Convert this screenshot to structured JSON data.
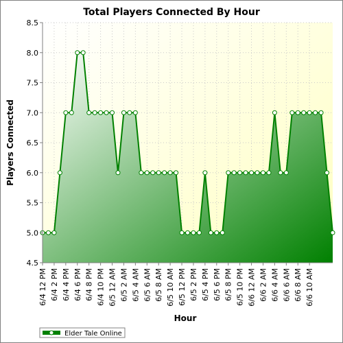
{
  "chart_data": {
    "type": "area",
    "title": "Total Players Connected By Hour",
    "xlabel": "Hour",
    "ylabel": "Players Connected",
    "ylim": [
      4.5,
      8.5
    ],
    "yticks": [
      4.5,
      5.0,
      5.5,
      6.0,
      6.5,
      7.0,
      7.5,
      8.0,
      8.5
    ],
    "grid": true,
    "legend_position": "bottom-left",
    "x_tick_labels": [
      "6/4 12 PM",
      "6/4 2 PM",
      "6/4 4 PM",
      "6/4 6 PM",
      "6/4 8 PM",
      "6/4 10 PM",
      "6/5 12 AM",
      "6/5 2 AM",
      "6/5 4 AM",
      "6/5 6 AM",
      "6/5 8 AM",
      "6/5 10 AM",
      "6/5 12 PM",
      "6/5 2 PM",
      "6/5 4 PM",
      "6/5 6 PM",
      "6/5 8 PM",
      "6/5 10 PM",
      "6/6 12 AM",
      "6/6 2 AM",
      "6/6 4 AM",
      "6/6 6 AM",
      "6/6 8 AM",
      "6/6 10 AM"
    ],
    "series": [
      {
        "name": "Elder Tale Online",
        "color": "#008000",
        "values": [
          5,
          5,
          5,
          6,
          7,
          7,
          8,
          8,
          7,
          7,
          7,
          7,
          7,
          6,
          7,
          7,
          7,
          6,
          6,
          6,
          6,
          6,
          6,
          6,
          5,
          5,
          5,
          5,
          6,
          5,
          5,
          5,
          6,
          6,
          6,
          6,
          6,
          6,
          6,
          6,
          7,
          6,
          6,
          7,
          7,
          7,
          7,
          7,
          7,
          6,
          5
        ]
      }
    ]
  }
}
